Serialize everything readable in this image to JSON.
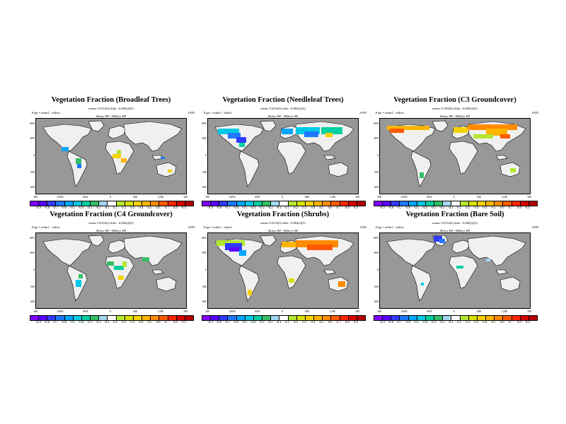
{
  "panels": [
    {
      "title": "Vegetation Fraction (Broadleaf Trees)",
      "stats": "mean: 0.0154(3) diffs: -0.002(2)(5)",
      "expt": "Expt = teilm1 - teilm1",
      "model": "0k/kyr BP - 000k/yr BP",
      "season": "ANN"
    },
    {
      "title": "Vegetation Fraction (Needleleaf Trees)",
      "stats": "mean: 0.0154(3) diffs: -0.002(2)(5)",
      "expt": "Expt = teilm1 - teilm1",
      "model": "0k/kyr BP - 000k/yr BP",
      "season": "ANN"
    },
    {
      "title": "Vegetation Fraction (C3 Groundcover)",
      "stats": "mean: 0.1094(3) diffs: -0.002(2)(5)",
      "expt": "Expt = teilm1 - teilm1",
      "model": "0k/kyr BP - 000k/yr BP",
      "season": "ANN"
    },
    {
      "title": "Vegetation Fraction (C4 Groundcover)",
      "stats": "mean: 0.0154(3) diffs: -0.002(2)(5)",
      "expt": "Expt = teilm1 - teilm1",
      "model": "0k/kyr BP - 000k/yr BP",
      "season": "ANN"
    },
    {
      "title": "Vegetation Fraction (Shrubs)",
      "stats": "mean: 0.0154(3) diffs: -0.002(2)(5)",
      "expt": "Expt = teilm1 - teilm1",
      "model": "0k/kyr BP - 000k/yr BP",
      "season": "ANN"
    },
    {
      "title": "Vegetation Fraction (Bare Soil)",
      "stats": "mean: 0.0154(3) diffs: -0.002(2)(5)",
      "expt": "Expt = teilm1 - teilm1",
      "model": "0k/kyr BP - 000k/yr BP",
      "season": "ANN"
    }
  ],
  "lat_ticks": [
    "60N",
    "30N",
    "0",
    "30S",
    "60S"
  ],
  "lon_ticks": [
    "180",
    "120W",
    "60W",
    "0",
    "60E",
    "120E",
    "180"
  ],
  "colorbar": {
    "ticks": [
      "-0.9",
      "-0.8",
      "-0.7",
      "-0.6",
      "-0.5",
      "-0.4",
      "-0.3",
      "-0.2",
      "-0.1",
      "0.1",
      "0.2",
      "0.3",
      "0.4",
      "0.5",
      "0.6",
      "0.7",
      "0.8",
      "0.9"
    ],
    "colors": [
      "#7f00ff",
      "#5a00ff",
      "#2f3cff",
      "#1f78ff",
      "#00a5ff",
      "#00c8e6",
      "#00cfa0",
      "#33bf66",
      "#a5d6f0",
      "#ffffff",
      "#b4e632",
      "#d7e100",
      "#f5d200",
      "#ffb400",
      "#ff8c00",
      "#ff5a00",
      "#ff2800",
      "#d70000",
      "#b40000"
    ]
  }
}
